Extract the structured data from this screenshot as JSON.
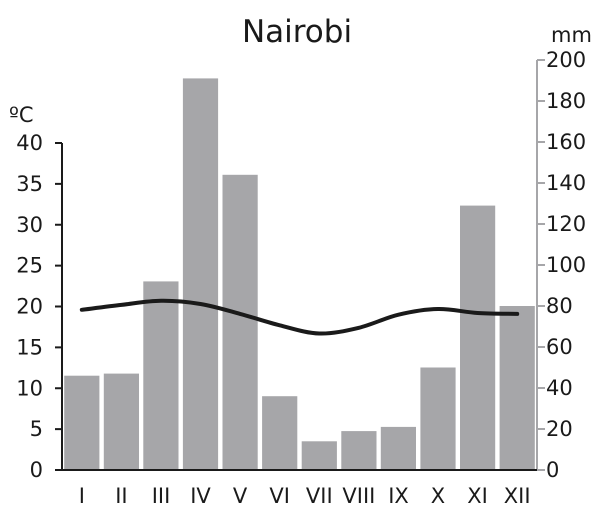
{
  "chart_data": {
    "type": "bar",
    "title": "Nairobi",
    "left_unit": "ºC",
    "right_unit": "mm",
    "categories": [
      "I",
      "II",
      "III",
      "IV",
      "V",
      "VI",
      "VII",
      "VIII",
      "IX",
      "X",
      "XI",
      "XII"
    ],
    "series": [
      {
        "type": "bar",
        "axis": "right",
        "values": [
          46,
          47,
          92,
          191,
          144,
          36,
          14,
          19,
          21,
          50,
          129,
          80
        ]
      },
      {
        "type": "line",
        "axis": "left",
        "values": [
          19.6,
          20.2,
          20.7,
          20.3,
          19.1,
          17.7,
          16.7,
          17.4,
          19.0,
          19.7,
          19.2,
          19.1
        ]
      }
    ],
    "left_axis": {
      "min": 0,
      "max": 40,
      "ticks": [
        0,
        5,
        10,
        15,
        20,
        25,
        30,
        35,
        40
      ]
    },
    "right_axis": {
      "min": 0,
      "max": 200,
      "ticks": [
        0,
        20,
        40,
        60,
        80,
        100,
        120,
        140,
        160,
        180,
        200
      ]
    },
    "grid": false,
    "colors": {
      "bar": "#a6a6a9",
      "line": "#1a1a1a",
      "axis": "#1a1a1a",
      "right_axis": "#a6a6a9"
    }
  }
}
